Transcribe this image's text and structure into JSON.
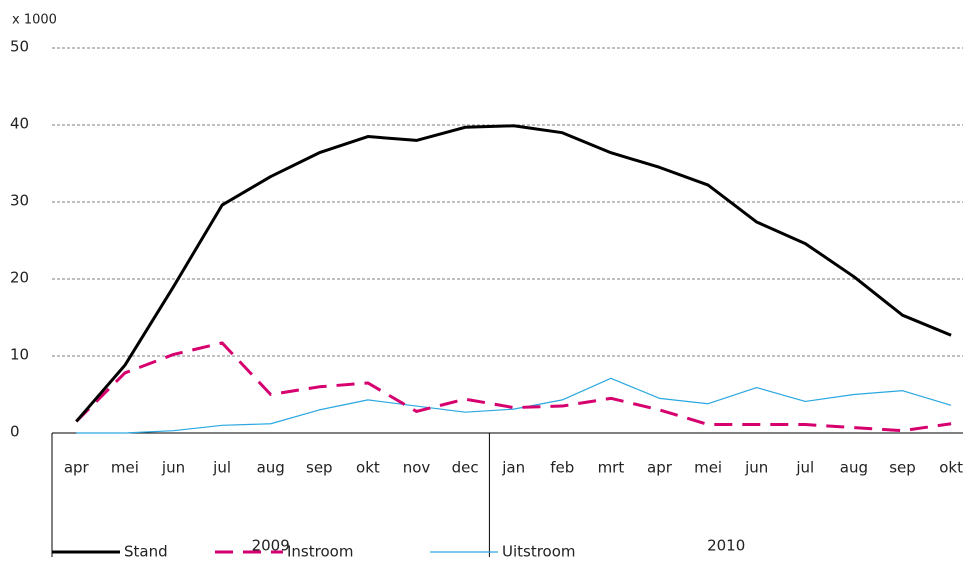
{
  "chart_data": {
    "type": "line",
    "y_label": "x 1000",
    "categories": [
      "apr",
      "mei",
      "jun",
      "jul",
      "aug",
      "sep",
      "okt",
      "nov",
      "dec",
      "jan",
      "feb",
      "mrt",
      "apr",
      "mei",
      "jun",
      "jul",
      "aug",
      "sep",
      "okt"
    ],
    "groups": [
      {
        "label": "2009",
        "span": 9
      },
      {
        "label": "2010",
        "span": 10
      }
    ],
    "series": [
      {
        "name": "Stand",
        "color": "#000000",
        "style": "solid",
        "width": 3,
        "values": [
          1.5,
          8.8,
          19,
          29.6,
          33.3,
          36.4,
          38.5,
          38,
          39.7,
          39.9,
          39,
          36.4,
          34.5,
          32.2,
          27.4,
          24.6,
          20.3,
          15.3,
          12.7
        ]
      },
      {
        "name": "Instroom",
        "color": "#d6006f",
        "style": "dashed",
        "width": 3,
        "values": [
          1.5,
          7.8,
          10.2,
          11.7,
          5,
          6,
          6.5,
          2.8,
          4.4,
          3.3,
          3.5,
          4.5,
          3,
          1.1,
          1.1,
          1.1,
          0.7,
          0.3,
          1.2
        ]
      },
      {
        "name": "Uitstroom",
        "color": "#2aa7e0",
        "style": "solid",
        "width": 1.2,
        "values": [
          0,
          0,
          0.3,
          1,
          1.2,
          3,
          4.3,
          3.5,
          2.7,
          3.1,
          4.3,
          7.1,
          4.5,
          3.8,
          5.9,
          4.1,
          5,
          5.5,
          3.6
        ]
      }
    ],
    "ylim": [
      0,
      50
    ],
    "yticks": [
      0,
      10,
      20,
      30,
      40,
      50
    ],
    "grid": true
  }
}
